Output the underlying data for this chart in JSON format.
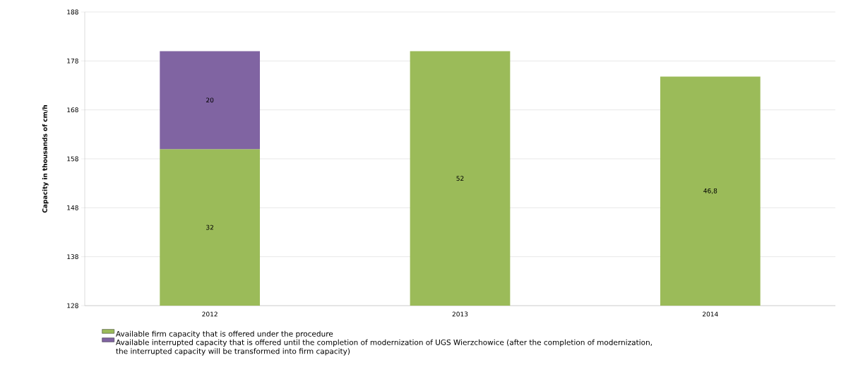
{
  "chart_data": {
    "type": "bar",
    "ylabel": "Capacity in thousands of cm/h",
    "categories": [
      "2012",
      "2013",
      "2014"
    ],
    "series": [
      {
        "name": "Available firm capacity that is offered under the procedure",
        "color": "#9bbb59",
        "base": [
          128,
          128,
          128
        ],
        "values": [
          32,
          52,
          46.8
        ],
        "value_labels": [
          "32",
          "52",
          "46,8"
        ]
      },
      {
        "name": "Available interrupted capacity that is offered until the completion of modernization of UGS Wierzchowice (after the completion of modernization, the interrupted capacity will be transformed into firm capacity)",
        "color": "#8064a2",
        "base": [
          160,
          null,
          null
        ],
        "values": [
          20,
          null,
          null
        ],
        "value_labels": [
          "20",
          null,
          null
        ]
      }
    ],
    "ylim": [
      128,
      188
    ],
    "yticks": [
      128,
      138,
      148,
      158,
      168,
      178,
      188
    ],
    "grid": "y",
    "legend": "bottom"
  }
}
